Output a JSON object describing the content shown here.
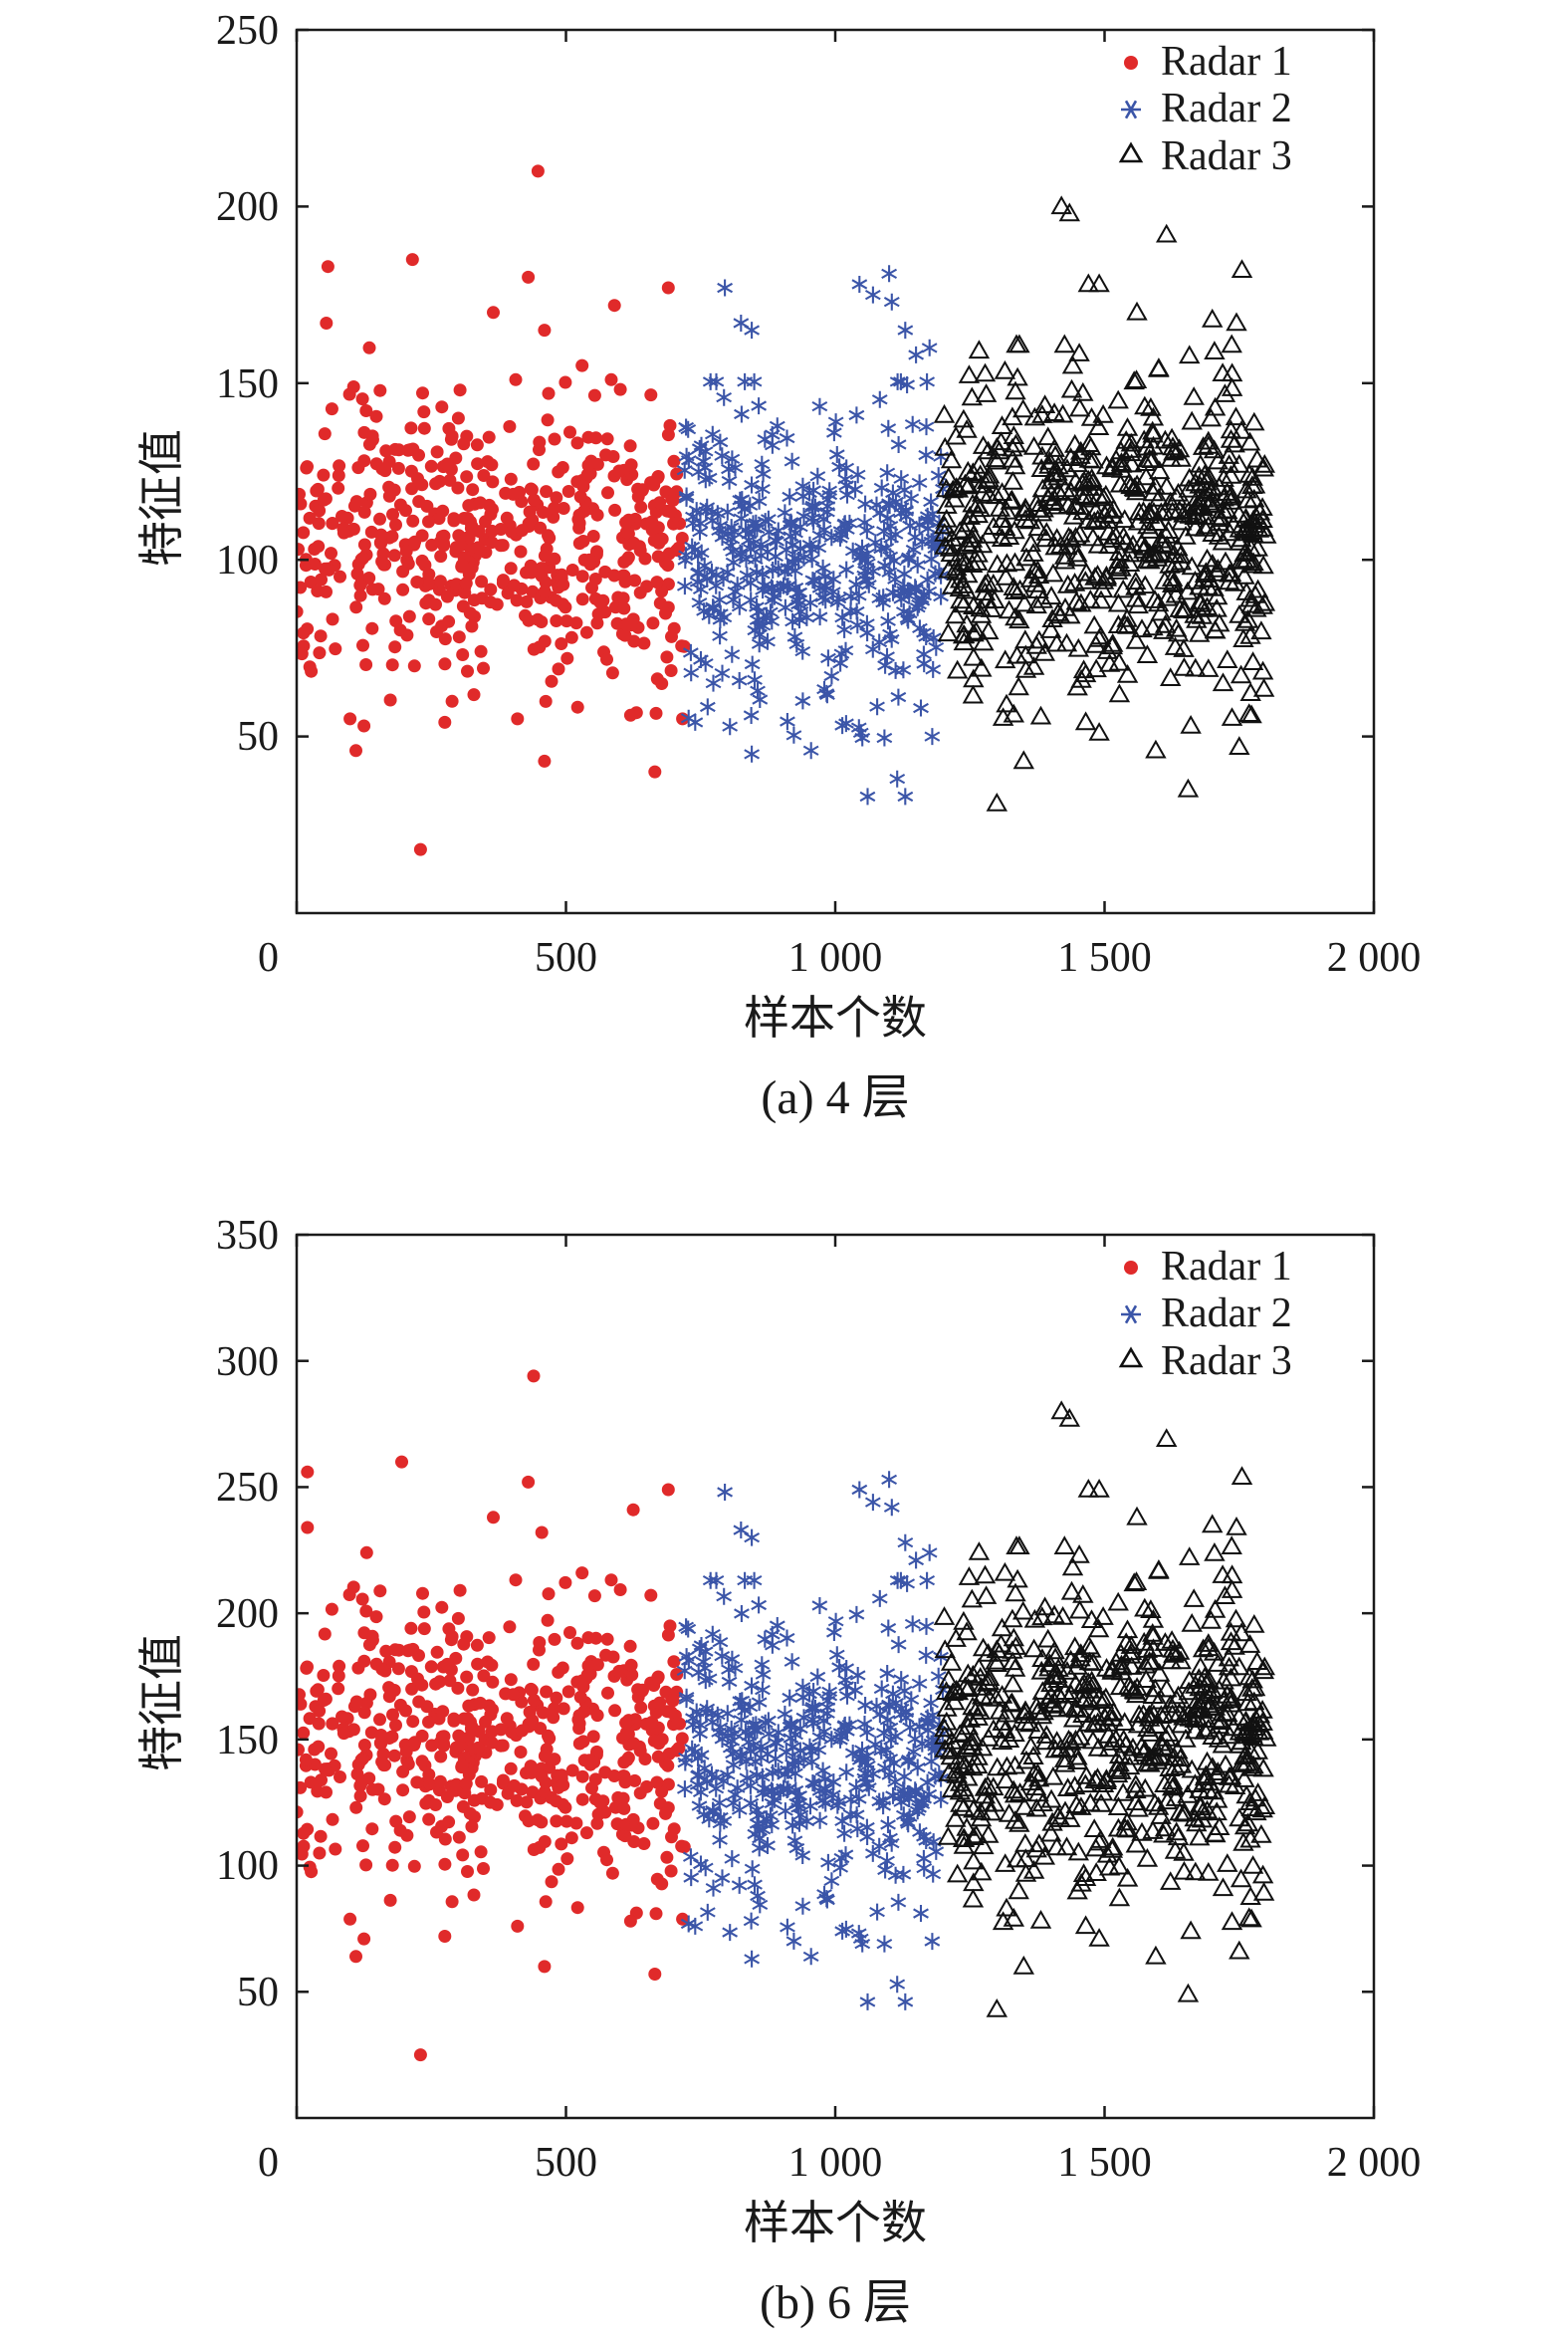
{
  "chart_data": [
    {
      "type": "scatter",
      "caption": "(a) 4 层",
      "xlabel": "样本个数",
      "ylabel": "特征值",
      "xlim": [
        0,
        2000
      ],
      "ylim": [
        0,
        250
      ],
      "xticks": [
        0,
        500,
        1000,
        1500,
        2000
      ],
      "xtick_labels": [
        "0",
        "500",
        "1 000",
        "1 500",
        "2 000"
      ],
      "yticks": [
        50,
        100,
        150,
        200,
        250
      ],
      "ytick_labels": [
        "50",
        "100",
        "150",
        "200",
        "250"
      ],
      "legend_position": "top-right",
      "series": [
        {
          "name": "Radar 1",
          "marker": "dot",
          "color": "#e02a2a",
          "x_range": [
            0,
            720
          ],
          "count": 520,
          "center": 103,
          "spread": 20,
          "notable_points": [
            [
              448,
              210
            ],
            [
              215,
              185
            ],
            [
              58,
              183
            ],
            [
              430,
              180
            ],
            [
              690,
              177
            ],
            [
              590,
              172
            ],
            [
              365,
              170
            ],
            [
              55,
              167
            ],
            [
              460,
              165
            ],
            [
              135,
              160
            ],
            [
              530,
              155
            ],
            [
              230,
              18
            ],
            [
              665,
              40
            ],
            [
              460,
              43
            ],
            [
              110,
              46
            ],
            [
              125,
              53
            ],
            [
              275,
              54
            ],
            [
              410,
              55
            ],
            [
              620,
              56
            ]
          ]
        },
        {
          "name": "Radar 2",
          "marker": "star",
          "color": "#3b55a8",
          "x_range": [
            720,
            1200
          ],
          "count": 420,
          "center": 100,
          "spread": 21,
          "notable_points": [
            [
              1100,
              181
            ],
            [
              1045,
              178
            ],
            [
              795,
              177
            ],
            [
              1070,
              175
            ],
            [
              1105,
              173
            ],
            [
              1130,
              165
            ],
            [
              845,
              165
            ],
            [
              825,
              167
            ],
            [
              1175,
              160
            ],
            [
              1150,
              158
            ],
            [
              1060,
              33
            ],
            [
              1130,
              33
            ],
            [
              1115,
              38
            ],
            [
              845,
              45
            ],
            [
              955,
              46
            ],
            [
              740,
              54
            ],
            [
              1180,
              50
            ]
          ]
        },
        {
          "name": "Radar 3",
          "marker": "triangle",
          "color": "#111111",
          "x_range": [
            1200,
            1800
          ],
          "count": 620,
          "center": 108,
          "spread": 22,
          "notable_points": [
            [
              1420,
              200
            ],
            [
              1435,
              198
            ],
            [
              1615,
              192
            ],
            [
              1755,
              182
            ],
            [
              1470,
              178
            ],
            [
              1490,
              178
            ],
            [
              1560,
              170
            ],
            [
              1700,
              168
            ],
            [
              1745,
              167
            ],
            [
              1300,
              31
            ],
            [
              1350,
              43
            ],
            [
              1655,
              35
            ],
            [
              1750,
              47
            ],
            [
              1595,
              46
            ],
            [
              1465,
              54
            ],
            [
              1490,
              51
            ],
            [
              1660,
              53
            ],
            [
              1720,
              65
            ]
          ]
        }
      ]
    },
    {
      "type": "scatter",
      "caption": "(b) 6 层",
      "xlabel": "样本个数",
      "ylabel": "特征值",
      "xlim": [
        0,
        2000
      ],
      "ylim": [
        0,
        350
      ],
      "xticks": [
        0,
        500,
        1000,
        1500,
        2000
      ],
      "xtick_labels": [
        "0",
        "500",
        "1 000",
        "1 500",
        "2 000"
      ],
      "yticks": [
        50,
        100,
        150,
        200,
        250,
        300,
        350
      ],
      "ytick_labels": [
        "50",
        "100",
        "150",
        "200",
        "250",
        "300",
        "350"
      ],
      "legend_position": "top-right",
      "series": [
        {
          "name": "Radar 1",
          "marker": "dot",
          "color": "#e02a2a",
          "x_range": [
            0,
            720
          ],
          "count": 520,
          "center": 146,
          "spread": 28,
          "notable_points": [
            [
              440,
              294
            ],
            [
              195,
              260
            ],
            [
              20,
              256
            ],
            [
              430,
              252
            ],
            [
              690,
              249
            ],
            [
              625,
              241
            ],
            [
              365,
              238
            ],
            [
              20,
              234
            ],
            [
              455,
              232
            ],
            [
              130,
              224
            ],
            [
              530,
              216
            ],
            [
              230,
              25
            ],
            [
              665,
              57
            ],
            [
              460,
              60
            ],
            [
              110,
              64
            ],
            [
              125,
              71
            ],
            [
              275,
              72
            ],
            [
              410,
              76
            ],
            [
              620,
              78
            ]
          ]
        },
        {
          "name": "Radar 2",
          "marker": "star",
          "color": "#3b55a8",
          "x_range": [
            720,
            1200
          ],
          "count": 420,
          "center": 141,
          "spread": 30,
          "notable_points": [
            [
              1100,
              253
            ],
            [
              1045,
              249
            ],
            [
              795,
              248
            ],
            [
              1070,
              244
            ],
            [
              1105,
              242
            ],
            [
              1130,
              228
            ],
            [
              845,
              230
            ],
            [
              825,
              233
            ],
            [
              1175,
              224
            ],
            [
              1150,
              221
            ],
            [
              1060,
              46
            ],
            [
              1130,
              46
            ],
            [
              1115,
              53
            ],
            [
              845,
              63
            ],
            [
              955,
              64
            ],
            [
              740,
              76
            ],
            [
              1180,
              70
            ]
          ]
        },
        {
          "name": "Radar 3",
          "marker": "triangle",
          "color": "#111111",
          "x_range": [
            1200,
            1800
          ],
          "count": 620,
          "center": 152,
          "spread": 31,
          "notable_points": [
            [
              1420,
              280
            ],
            [
              1435,
              277
            ],
            [
              1615,
              269
            ],
            [
              1755,
              254
            ],
            [
              1470,
              249
            ],
            [
              1490,
              249
            ],
            [
              1560,
              238
            ],
            [
              1700,
              235
            ],
            [
              1745,
              234
            ],
            [
              1300,
              43
            ],
            [
              1350,
              60
            ],
            [
              1655,
              49
            ],
            [
              1750,
              66
            ],
            [
              1595,
              64
            ],
            [
              1465,
              76
            ],
            [
              1490,
              71
            ],
            [
              1660,
              74
            ],
            [
              1720,
              91
            ]
          ]
        }
      ]
    }
  ]
}
